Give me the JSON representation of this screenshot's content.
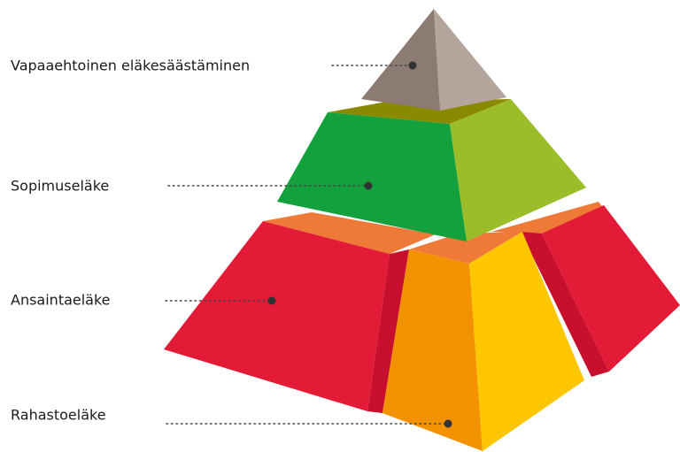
{
  "layers": [
    {
      "label": "Vapaaehtoinen eläkesäästäminen"
    },
    {
      "label": "Sopimuseläke"
    },
    {
      "label": "Ansaintaeläke"
    },
    {
      "label": "Rahastoeläke"
    }
  ]
}
